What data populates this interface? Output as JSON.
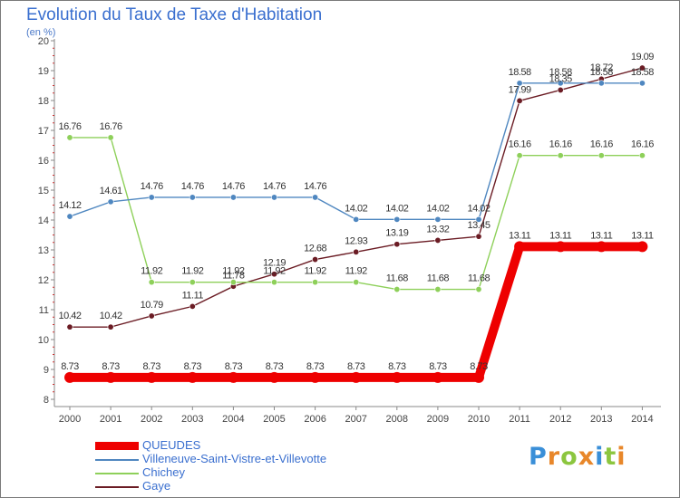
{
  "title": "Evolution du Taux de Taxe d'Habitation",
  "subtitle": "(en %)",
  "logo": {
    "letters": [
      "P",
      "r",
      "o",
      "x",
      "i",
      "t",
      "i"
    ],
    "colors": [
      "#3a8fd8",
      "#e8872a",
      "#8cc63f",
      "#e8872a",
      "#3a8fd8",
      "#8cc63f",
      "#e8872a"
    ]
  },
  "chart_data": {
    "type": "line",
    "title": "Evolution du Taux de Taxe d'Habitation",
    "ylabel": "(en %)",
    "xlabel": "",
    "x": [
      "2000",
      "2001",
      "2002",
      "2003",
      "2004",
      "2005",
      "2006",
      "2007",
      "2008",
      "2009",
      "2010",
      "2011",
      "2012",
      "2013",
      "2014"
    ],
    "ylim": [
      8,
      20
    ],
    "yticks": [
      8,
      9,
      10,
      11,
      12,
      13,
      14,
      15,
      16,
      17,
      18,
      19,
      20
    ],
    "grid": false,
    "legend": "bottom-left",
    "series": [
      {
        "name": "QUEUDES",
        "color": "#ee0000",
        "values": [
          8.73,
          8.73,
          8.73,
          8.73,
          8.73,
          8.73,
          8.73,
          8.73,
          8.73,
          8.73,
          8.73,
          13.11,
          13.11,
          13.11,
          13.11
        ],
        "labels": [
          "8.73",
          "8.73",
          "8.73",
          "8.73",
          "8.73",
          "8.73",
          "8.73",
          "8.73",
          "8.73",
          "8.73",
          "8.73",
          "13.11",
          "13.11",
          "13.11",
          "13.11"
        ]
      },
      {
        "name": "Villeneuve-Saint-Vistre-et-Villevotte",
        "color": "#4f87c0",
        "values": [
          14.12,
          14.61,
          14.76,
          14.76,
          14.76,
          14.76,
          14.76,
          14.02,
          14.02,
          14.02,
          14.02,
          18.58,
          18.58,
          18.58,
          18.58
        ],
        "labels": [
          "14.12",
          "14.61",
          "14.76",
          "14.76",
          "14.76",
          "14.76",
          "14.76",
          "14.02",
          "14.02",
          "14.02",
          "14.02",
          "18.58",
          "18.58",
          "18.58",
          "18.58"
        ]
      },
      {
        "name": "Chichey",
        "color": "#8ed05a",
        "values": [
          16.76,
          16.76,
          11.92,
          11.92,
          11.92,
          11.92,
          11.92,
          11.92,
          11.68,
          11.68,
          11.68,
          16.16,
          16.16,
          16.16,
          16.16
        ],
        "labels": [
          "16.76",
          "16.76",
          "11.92",
          "11.92",
          "11.92",
          "11.92",
          "11.92",
          "11.92",
          "11.68",
          "11.68",
          "11.68",
          "16.16",
          "16.16",
          "16.16",
          "16.16"
        ]
      },
      {
        "name": "Gaye",
        "color": "#6b1c24",
        "values": [
          10.42,
          10.42,
          10.79,
          11.11,
          11.78,
          12.19,
          12.68,
          12.93,
          13.19,
          13.32,
          13.45,
          17.99,
          18.35,
          18.72,
          19.09
        ],
        "labels": [
          "10.42",
          "10.42",
          "10.79",
          "11.11",
          "11.78",
          "12.19",
          "12.68",
          "12.93",
          "13.19",
          "13.32",
          "13.45",
          "17.99",
          "18.35",
          "18.72",
          "19.09"
        ]
      }
    ]
  }
}
